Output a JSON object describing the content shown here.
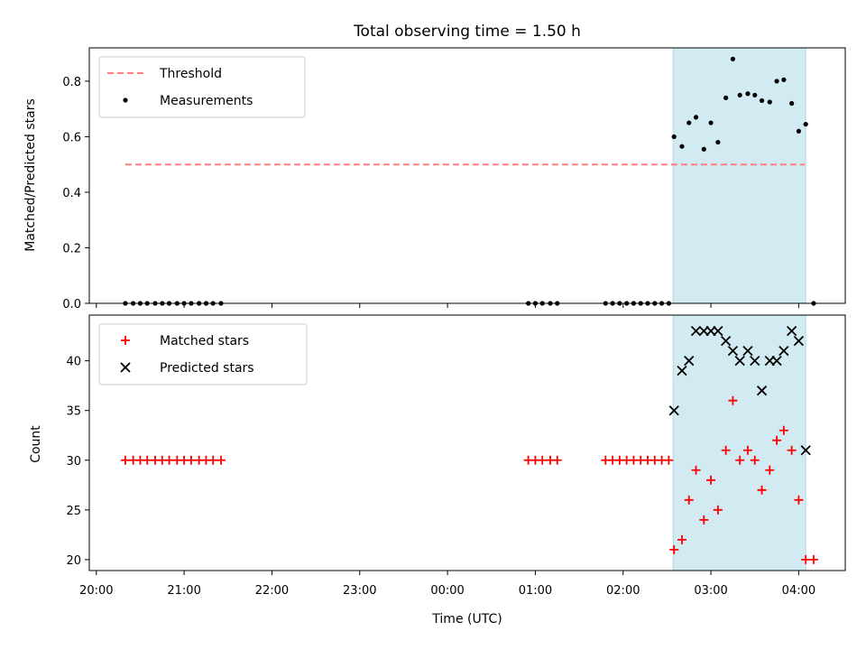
{
  "chart_data": [
    {
      "type": "scatter",
      "panel": "top",
      "title": "Total observing time = 1.50 h",
      "ylabel": "Matched/Predicted stars",
      "xlabel": "",
      "ylim": [
        0,
        0.92
      ],
      "yticks": [
        0.0,
        0.2,
        0.4,
        0.6,
        0.8
      ],
      "ytick_labels": [
        "0.0",
        "0.2",
        "0.4",
        "0.6",
        "0.8"
      ],
      "xlim_hours_since_20": [
        -0.08,
        8.53
      ],
      "xticks_hours_since_20": [
        0,
        1,
        2,
        3,
        4,
        5,
        6,
        7,
        8
      ],
      "shaded_interval_hours_since_20": [
        6.57,
        8.08
      ],
      "shade_color": "#add8e6",
      "threshold": {
        "label": "Threshold",
        "value": 0.5,
        "x_range_hours_since_20": [
          0.33,
          8.07
        ],
        "color": "#ff7f7f"
      },
      "legend": [
        "Threshold",
        "Measurements"
      ],
      "series": [
        {
          "name": "Measurements",
          "color": "#000000",
          "x": [
            0.33,
            0.42,
            0.5,
            0.58,
            0.67,
            0.75,
            0.83,
            0.92,
            1.0,
            1.08,
            1.17,
            1.25,
            1.33,
            1.42,
            4.92,
            5.0,
            5.08,
            5.17,
            5.25,
            5.8,
            5.88,
            5.96,
            6.04,
            6.12,
            6.2,
            6.28,
            6.36,
            6.44,
            6.52,
            6.58,
            6.67,
            6.75,
            6.83,
            6.92,
            7.0,
            7.08,
            7.17,
            7.25,
            7.33,
            7.42,
            7.5,
            7.58,
            7.67,
            7.75,
            7.83,
            7.92,
            8.0,
            8.08,
            8.17
          ],
          "y": [
            0,
            0,
            0,
            0,
            0,
            0,
            0,
            0,
            0,
            0,
            0,
            0,
            0,
            0,
            0,
            0,
            0,
            0,
            0,
            0,
            0,
            0,
            0,
            0,
            0,
            0,
            0,
            0,
            0,
            0.6,
            0.565,
            0.65,
            0.67,
            0.555,
            0.65,
            0.58,
            0.74,
            0.88,
            0.75,
            0.755,
            0.75,
            0.73,
            0.725,
            0.8,
            0.805,
            0.72,
            0.62,
            0.645,
            0
          ]
        }
      ]
    },
    {
      "type": "scatter",
      "panel": "bottom",
      "title": "",
      "ylabel": "Count",
      "xlabel": "Time (UTC)",
      "ylim": [
        18.9,
        44.6
      ],
      "yticks": [
        20,
        25,
        30,
        35,
        40
      ],
      "ytick_labels": [
        "20",
        "25",
        "30",
        "35",
        "40"
      ],
      "xlim_hours_since_20": [
        -0.08,
        8.53
      ],
      "xticks_hours_since_20": [
        0,
        1,
        2,
        3,
        4,
        5,
        6,
        7,
        8
      ],
      "xtick_labels": [
        "20:00",
        "21:00",
        "22:00",
        "23:00",
        "00:00",
        "01:00",
        "02:00",
        "03:00",
        "04:00"
      ],
      "shaded_interval_hours_since_20": [
        6.57,
        8.08
      ],
      "shade_color": "#add8e6",
      "legend": [
        "Matched stars",
        "Predicted stars"
      ],
      "series": [
        {
          "name": "Matched stars",
          "marker": "+",
          "color": "#ff0000",
          "x": [
            0.33,
            0.42,
            0.5,
            0.58,
            0.67,
            0.75,
            0.83,
            0.92,
            1.0,
            1.08,
            1.17,
            1.25,
            1.33,
            1.42,
            4.92,
            5.0,
            5.08,
            5.17,
            5.25,
            5.8,
            5.88,
            5.96,
            6.04,
            6.12,
            6.2,
            6.28,
            6.36,
            6.44,
            6.52,
            6.58,
            6.67,
            6.75,
            6.83,
            6.92,
            7.0,
            7.08,
            7.17,
            7.25,
            7.33,
            7.42,
            7.5,
            7.58,
            7.67,
            7.75,
            7.83,
            7.92,
            8.0,
            8.08,
            8.17
          ],
          "y": [
            30,
            30,
            30,
            30,
            30,
            30,
            30,
            30,
            30,
            30,
            30,
            30,
            30,
            30,
            30,
            30,
            30,
            30,
            30,
            30,
            30,
            30,
            30,
            30,
            30,
            30,
            30,
            30,
            30,
            21,
            22,
            26,
            29,
            24,
            28,
            25,
            31,
            36,
            30,
            31,
            30,
            27,
            29,
            32,
            33,
            31,
            26,
            20,
            20
          ]
        },
        {
          "name": "Predicted stars",
          "marker": "x",
          "color": "#000000",
          "x": [
            6.58,
            6.67,
            6.75,
            6.83,
            6.92,
            7.0,
            7.08,
            7.17,
            7.25,
            7.33,
            7.42,
            7.5,
            7.58,
            7.67,
            7.75,
            7.83,
            7.92,
            8.0,
            8.08
          ],
          "y": [
            35,
            39,
            40,
            43,
            43,
            43,
            43,
            42,
            41,
            40,
            41,
            40,
            37,
            40,
            40,
            41,
            43,
            42,
            31
          ]
        }
      ]
    }
  ]
}
